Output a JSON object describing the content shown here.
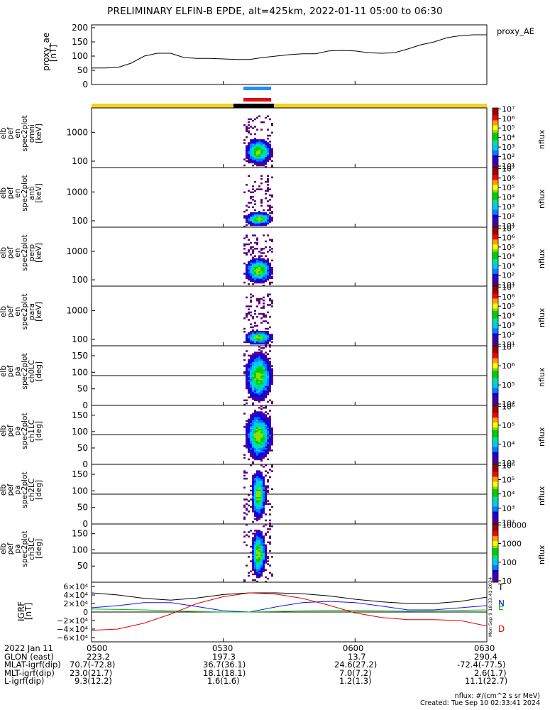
{
  "title": "PRELIMINARY ELFIN-B EPDE, alt=425km, 2022-01-11 05:00 to 06:30",
  "chart_data": [
    {
      "type": "line",
      "name": "proxy_ae",
      "ylabel": [
        "proxy_ae",
        "[nT]"
      ],
      "legend": "proxy_AE",
      "ylim": [
        0,
        210
      ],
      "yticks": [
        0,
        50,
        100,
        150,
        200
      ],
      "x_minutes": [
        0,
        3,
        6,
        9,
        12,
        15,
        18,
        21,
        24,
        27,
        30,
        33,
        36,
        39,
        42,
        45,
        48,
        51,
        54,
        57,
        60,
        63,
        66,
        69,
        72,
        75,
        78,
        81,
        84,
        87,
        90
      ],
      "values": [
        58,
        58,
        60,
        75,
        100,
        110,
        110,
        95,
        92,
        92,
        90,
        88,
        88,
        95,
        100,
        105,
        108,
        108,
        118,
        120,
        118,
        112,
        110,
        112,
        125,
        140,
        150,
        165,
        172,
        175,
        175
      ]
    },
    {
      "type": "heatmap",
      "name": "omni",
      "ylabel": [
        "elb",
        "pef",
        "en",
        "spec2plot",
        "omni",
        "[keV]"
      ],
      "ylim_log": [
        60,
        7000
      ],
      "yticks": [
        100,
        1000
      ],
      "colorbar": {
        "label": "nflux",
        "ticks": [
          "10¹",
          "10²",
          "10³",
          "10⁴",
          "10⁵",
          "10⁶",
          "10⁷"
        ]
      }
    },
    {
      "type": "heatmap",
      "name": "anti",
      "ylabel": [
        "elb",
        "pef",
        "en",
        "spec2plot",
        "anti",
        "[keV]"
      ],
      "ylim_log": [
        60,
        7000
      ],
      "yticks": [
        100,
        1000
      ],
      "colorbar": {
        "label": "nflux",
        "ticks": [
          "10¹",
          "10²",
          "10³",
          "10⁴",
          "10⁵",
          "10⁶",
          "10⁷"
        ]
      }
    },
    {
      "type": "heatmap",
      "name": "perp",
      "ylabel": [
        "elb",
        "pef",
        "en",
        "spec2plot",
        "perp",
        "[keV]"
      ],
      "ylim_log": [
        60,
        7000
      ],
      "yticks": [
        100,
        1000
      ],
      "colorbar": {
        "label": "nflux",
        "ticks": [
          "10¹",
          "10²",
          "10³",
          "10⁴",
          "10⁵",
          "10⁶",
          "10⁷"
        ]
      }
    },
    {
      "type": "heatmap",
      "name": "para",
      "ylabel": [
        "elb",
        "pef",
        "en",
        "spec2plot",
        "para",
        "[keV]"
      ],
      "ylim_log": [
        60,
        7000
      ],
      "yticks": [
        100,
        1000
      ],
      "colorbar": {
        "label": "nflux",
        "ticks": [
          "10¹",
          "10²",
          "10³",
          "10⁴",
          "10⁵",
          "10⁶",
          "10⁷"
        ]
      }
    },
    {
      "type": "heatmap",
      "name": "ch0LC",
      "ylabel": [
        "elb",
        "pef",
        "pa",
        "spec2plot",
        "ch0LC",
        "[deg]"
      ],
      "ylim": [
        0,
        180
      ],
      "yticks": [
        0,
        50,
        100,
        150
      ],
      "colorbar": {
        "label": "nflux",
        "ticks": [
          "10⁴",
          "10⁵",
          "10⁶",
          "10⁷"
        ]
      }
    },
    {
      "type": "heatmap",
      "name": "ch1LC",
      "ylabel": [
        "elb",
        "pef",
        "pa",
        "spec2plot",
        "ch1LC",
        "[deg]"
      ],
      "ylim": [
        0,
        180
      ],
      "yticks": [
        0,
        50,
        100,
        150
      ],
      "colorbar": {
        "label": "nflux",
        "ticks": [
          "10³",
          "10⁴",
          "10⁵",
          "10⁶"
        ]
      }
    },
    {
      "type": "heatmap",
      "name": "ch2LC",
      "ylabel": [
        "elb",
        "pef",
        "pa",
        "spec2plot",
        "ch2LC",
        "[deg]"
      ],
      "ylim": [
        0,
        180
      ],
      "yticks": [
        0,
        50,
        100,
        150
      ],
      "colorbar": {
        "label": "nflux",
        "ticks": [
          "10²",
          "10³",
          "10⁴",
          "10⁵",
          "10⁶"
        ]
      }
    },
    {
      "type": "heatmap",
      "name": "ch3LC",
      "ylabel": [
        "elb",
        "pef",
        "pa",
        "spec2plot",
        "ch3LC",
        "[deg]"
      ],
      "ylim": [
        0,
        180
      ],
      "yticks": [
        50,
        100,
        150
      ],
      "colorbar": {
        "label": "nflux",
        "ticks": [
          "10",
          "100",
          "1000",
          "10000"
        ]
      }
    },
    {
      "type": "line",
      "name": "IGRF",
      "ylabel": [
        "IGRF",
        "[nT]"
      ],
      "ylim": [
        -70000,
        70000
      ],
      "yticks": [
        "6×10⁴",
        "4×10⁴",
        "2×10⁴",
        "0",
        "−2×10⁴",
        "−4×10⁴",
        "−6×10⁴"
      ],
      "ytick_values": [
        60000,
        40000,
        20000,
        0,
        -20000,
        -40000,
        -60000
      ],
      "x_minutes": [
        0,
        6,
        12,
        18,
        24,
        30,
        36,
        42,
        48,
        54,
        60,
        66,
        72,
        78,
        84,
        90
      ],
      "series": [
        {
          "name": "T",
          "color": "#000000",
          "values": [
            45000,
            40000,
            32000,
            28000,
            33000,
            41000,
            45000,
            45000,
            43000,
            38000,
            30000,
            24000,
            20000,
            20000,
            25000,
            35000
          ]
        },
        {
          "name": "N",
          "color": "#1010ff",
          "values": [
            10000,
            15000,
            22000,
            22000,
            13000,
            3000,
            0,
            12000,
            22000,
            25000,
            22000,
            14000,
            5000,
            5000,
            10000,
            15000
          ]
        },
        {
          "name": "E",
          "color": "#00bb00",
          "values": [
            7000,
            6000,
            5000,
            3000,
            1000,
            0,
            0,
            1000,
            3000,
            4000,
            4000,
            3000,
            2000,
            3000,
            4000,
            5000
          ]
        },
        {
          "name": "D",
          "color": "#e00000",
          "values": [
            -43000,
            -40000,
            -26000,
            -5000,
            20000,
            36000,
            45000,
            42000,
            32000,
            16000,
            -2000,
            -13000,
            -18000,
            -18000,
            -20000,
            -33000
          ]
        }
      ]
    }
  ],
  "legend_labels": {
    "T": "T",
    "N": "N",
    "E": "E",
    "D": "D"
  },
  "orbit_table": {
    "rows": [
      {
        "label": "2022 Jan 11",
        "values": [
          "0500",
          "0530",
          "0600",
          "0630"
        ]
      },
      {
        "label": "GLON (east)",
        "values": [
          "223.2",
          "197.3",
          "13.7",
          "290.4"
        ]
      },
      {
        "label": "MLAT-igrf(dip)",
        "values": [
          "70.7(-72.8)",
          "36.7(36.1)",
          "24.6(27.2)",
          "-72.4(-77.5)"
        ]
      },
      {
        "label": "MLT-igrf(dip)",
        "values": [
          "23.0(21.7)",
          "18.1(18.1)",
          "7.0(7.2)",
          "2.6(1.7)"
        ]
      },
      {
        "label": "L-igrf(dip)",
        "values": [
          "9.3(12.2)",
          "1.6(1.6)",
          "1.2(1.3)",
          "11.1(22.7)"
        ]
      }
    ]
  },
  "footer": {
    "units": "nflux: #/(cm^2 s sr MeV)",
    "created": "Created: Tue Sep 10 02:33:41 2024"
  },
  "stamp": "Mon Sep 9 18:33:41 2024",
  "colors": {
    "science_bar": "#f5d21e",
    "collection_bar": "#000000",
    "blue_marker": "#1e90ff",
    "red_marker": "#e01010"
  }
}
